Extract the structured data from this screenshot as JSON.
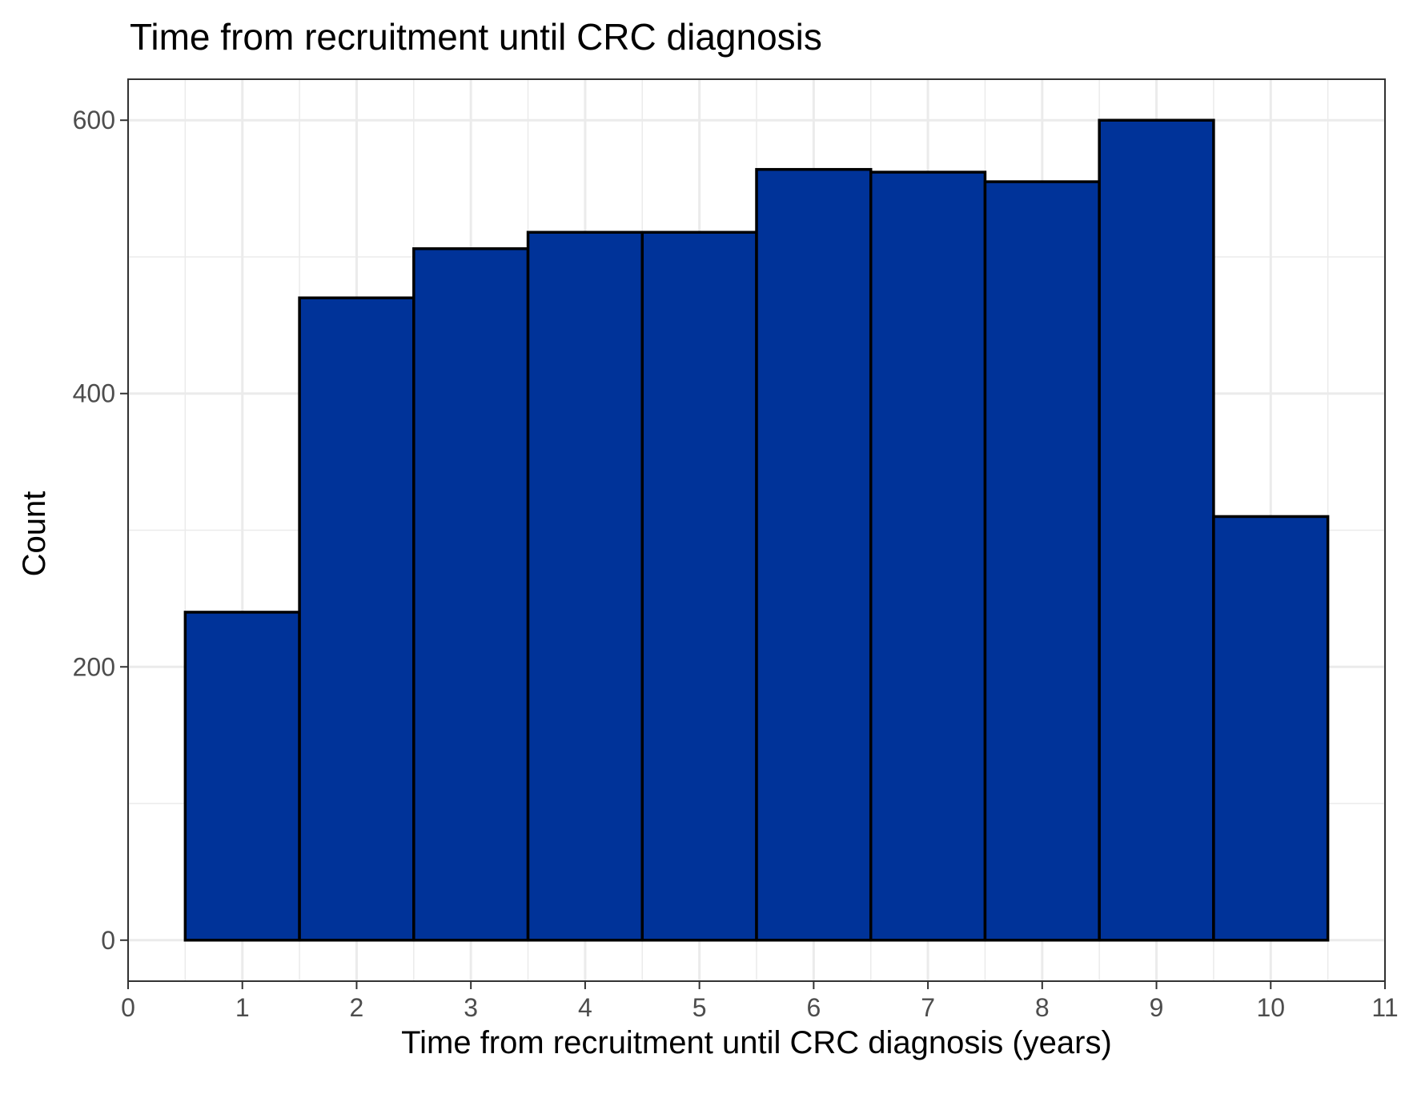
{
  "chart_data": {
    "type": "bar",
    "title": "Time from recruitment until CRC diagnosis",
    "xlabel": "Time from recruitment until CRC diagnosis (years)",
    "ylabel": "Count",
    "bin_width": 1,
    "x": [
      1,
      2,
      3,
      4,
      5,
      6,
      7,
      8,
      9,
      10
    ],
    "values": [
      240,
      470,
      506,
      518,
      518,
      564,
      562,
      555,
      600,
      310
    ],
    "xlim": [
      0,
      11
    ],
    "ylim": [
      -30,
      630
    ],
    "x_ticks": [
      0,
      1,
      2,
      3,
      4,
      5,
      6,
      7,
      8,
      9,
      10,
      11
    ],
    "y_ticks": [
      0,
      200,
      400,
      600
    ],
    "grid": true,
    "legend": "none",
    "colors": {
      "bar_fill": "#003399",
      "bar_outline": "#000000",
      "grid": "#ebebeb",
      "panel_border": "#333333",
      "tick_text": "#4d4d4d",
      "text": "#000000"
    }
  }
}
